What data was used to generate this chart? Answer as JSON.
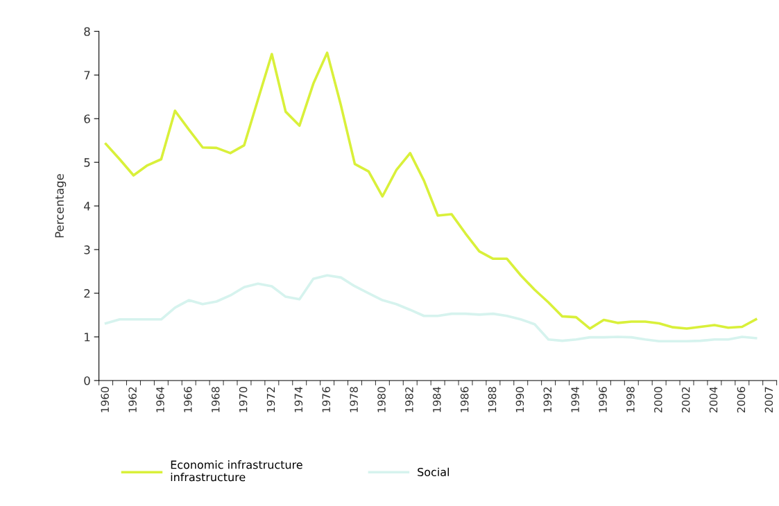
{
  "chart_data": {
    "type": "line",
    "ylabel": "Percentage",
    "categories": [
      "1960",
      null,
      "1962",
      null,
      "1964",
      null,
      "1966",
      null,
      "1968",
      null,
      "1970",
      null,
      "1972",
      null,
      "1974",
      null,
      "1976",
      null,
      "1978",
      null,
      "1980",
      null,
      "1982",
      null,
      "1984",
      null,
      "1986",
      null,
      "1988",
      null,
      "1990",
      null,
      "1992",
      null,
      "1994",
      null,
      "1996",
      null,
      "1998",
      null,
      "2000",
      null,
      "2002",
      null,
      "2004",
      null,
      "2006",
      null,
      "2007"
    ],
    "series": [
      {
        "name": "Economic infrastructure\ninfrastructure",
        "color": "#d9f03a",
        "values": [
          5.42,
          5.07,
          4.7,
          4.93,
          5.07,
          6.18,
          5.75,
          5.34,
          5.33,
          5.21,
          5.39,
          6.44,
          7.48,
          6.16,
          5.84,
          6.8,
          7.51,
          6.3,
          4.96,
          4.79,
          4.22,
          4.82,
          5.21,
          4.58,
          3.78,
          3.81,
          3.37,
          2.96,
          2.79,
          2.79,
          2.41,
          2.08,
          1.79,
          1.47,
          1.45,
          1.19,
          1.39,
          1.32,
          1.35,
          1.35,
          1.31,
          1.22,
          1.19,
          1.23,
          1.27,
          1.21,
          1.23,
          1.4,
          null
        ]
      },
      {
        "name": "Social",
        "color": "#d6f3ee",
        "values": [
          1.31,
          1.4,
          1.4,
          1.4,
          1.4,
          1.67,
          1.84,
          1.75,
          1.81,
          1.95,
          2.14,
          2.22,
          2.16,
          1.92,
          1.86,
          2.33,
          2.41,
          2.36,
          2.16,
          2.0,
          1.84,
          1.75,
          1.62,
          1.48,
          1.48,
          1.53,
          1.53,
          1.51,
          1.53,
          1.48,
          1.4,
          1.29,
          0.94,
          0.91,
          0.94,
          0.99,
          0.99,
          1.0,
          0.99,
          0.94,
          0.9,
          0.9,
          0.9,
          0.91,
          0.94,
          0.94,
          1.0,
          0.97,
          null
        ]
      }
    ],
    "ylim": [
      0,
      8
    ],
    "yticks": [
      0,
      1,
      2,
      3,
      4,
      5,
      6,
      7,
      8
    ],
    "grid": false,
    "legend": "bottom left",
    "marker": "none",
    "line_style": "solid"
  }
}
